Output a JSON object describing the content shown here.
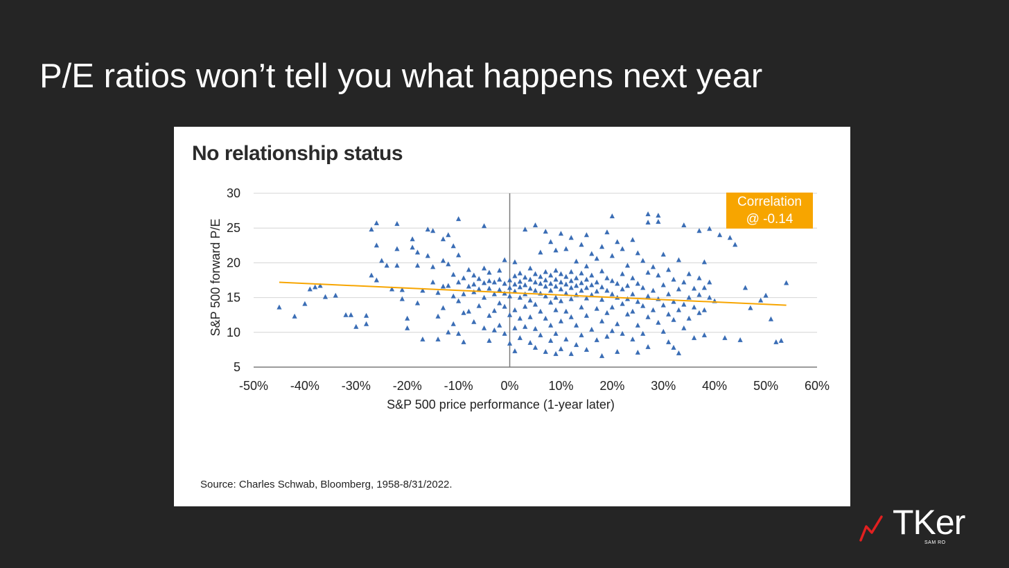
{
  "slide": {
    "title": "P/E ratios won’t tell you what happens next year"
  },
  "chart_card": {
    "source": "Source: Charles Schwab, Bloomberg, 1958-8/31/2022."
  },
  "logo": {
    "wordmark": "TKer",
    "subtitle": "SAM RO"
  },
  "colors": {
    "background": "#252525",
    "point": "#3a6db5",
    "trendline": "#f7a500",
    "annotation_box": "#f7a500",
    "logo_accent": "#e02020"
  },
  "chart_data": {
    "type": "scatter",
    "title": "No relationship status",
    "xlabel": "S&P 500 price performance (1-year later)",
    "ylabel": "S&P 500 forward P/E",
    "xlim": [
      -50,
      60
    ],
    "ylim": [
      5,
      30
    ],
    "xticks": [
      -50,
      -40,
      -30,
      -20,
      -10,
      0,
      10,
      20,
      30,
      40,
      50,
      60
    ],
    "xtick_labels": [
      "-50%",
      "-40%",
      "-30%",
      "-20%",
      "-10%",
      "0%",
      "10%",
      "20%",
      "30%",
      "40%",
      "50%",
      "60%"
    ],
    "yticks": [
      5,
      10,
      15,
      20,
      25,
      30
    ],
    "ytick_labels": [
      "5",
      "10",
      "15",
      "20",
      "25",
      "30"
    ],
    "grid": "horizontal",
    "marker": "triangle",
    "annotation": {
      "lines": [
        "Correlation",
        "@ -0.14"
      ],
      "placement": "top-right"
    },
    "trendline": {
      "x": [
        -45,
        54
      ],
      "y": [
        17.2,
        13.9
      ]
    },
    "points": [
      [
        -45,
        13.6
      ],
      [
        -42,
        12.3
      ],
      [
        -40,
        14.1
      ],
      [
        -39,
        16.2
      ],
      [
        -38,
        16.5
      ],
      [
        -37,
        16.7
      ],
      [
        -36,
        15.1
      ],
      [
        -34,
        15.3
      ],
      [
        -32,
        12.5
      ],
      [
        -31,
        12.5
      ],
      [
        -30,
        10.8
      ],
      [
        -28,
        11.2
      ],
      [
        -28,
        12.4
      ],
      [
        -27,
        24.8
      ],
      [
        -27,
        18.2
      ],
      [
        -26,
        25.7
      ],
      [
        -26,
        22.5
      ],
      [
        -26,
        17.5
      ],
      [
        -25,
        20.3
      ],
      [
        -24,
        19.6
      ],
      [
        -23,
        16.2
      ],
      [
        -22,
        25.6
      ],
      [
        -22,
        22.0
      ],
      [
        -22,
        19.6
      ],
      [
        -21,
        16.1
      ],
      [
        -21,
        14.8
      ],
      [
        -20,
        12.0
      ],
      [
        -20,
        10.6
      ],
      [
        -19,
        23.4
      ],
      [
        -19,
        22.2
      ],
      [
        -18,
        21.5
      ],
      [
        -18,
        19.6
      ],
      [
        -18,
        14.2
      ],
      [
        -17,
        16.0
      ],
      [
        -17,
        9.0
      ],
      [
        -16,
        24.8
      ],
      [
        -16,
        21.0
      ],
      [
        -15,
        24.6
      ],
      [
        -15,
        19.4
      ],
      [
        -15,
        17.2
      ],
      [
        -14,
        15.7
      ],
      [
        -14,
        12.3
      ],
      [
        -14,
        9.0
      ],
      [
        -13,
        23.4
      ],
      [
        -13,
        20.3
      ],
      [
        -13,
        16.6
      ],
      [
        -13,
        13.5
      ],
      [
        -12,
        24.0
      ],
      [
        -12,
        19.8
      ],
      [
        -12,
        16.7
      ],
      [
        -12,
        10.0
      ],
      [
        -11,
        22.4
      ],
      [
        -11,
        18.3
      ],
      [
        -11,
        15.2
      ],
      [
        -11,
        11.2
      ],
      [
        -10,
        26.3
      ],
      [
        -10,
        21.1
      ],
      [
        -10,
        17.2
      ],
      [
        -10,
        14.5
      ],
      [
        -10,
        9.8
      ],
      [
        -9,
        17.8
      ],
      [
        -9,
        15.5
      ],
      [
        -9,
        12.8
      ],
      [
        -9,
        8.6
      ],
      [
        -8,
        19.0
      ],
      [
        -8,
        16.6
      ],
      [
        -8,
        13.0
      ],
      [
        -7,
        18.2
      ],
      [
        -7,
        16.9
      ],
      [
        -7,
        15.8
      ],
      [
        -7,
        11.5
      ],
      [
        -6,
        17.7
      ],
      [
        -6,
        16.2
      ],
      [
        -6,
        13.8
      ],
      [
        -5,
        25.3
      ],
      [
        -5,
        19.2
      ],
      [
        -5,
        17.1
      ],
      [
        -5,
        15.0
      ],
      [
        -5,
        10.6
      ],
      [
        -4,
        18.6
      ],
      [
        -4,
        17.4
      ],
      [
        -4,
        16.3
      ],
      [
        -4,
        12.4
      ],
      [
        -4,
        8.8
      ],
      [
        -3,
        17.2
      ],
      [
        -3,
        15.5
      ],
      [
        -3,
        13.1
      ],
      [
        -3,
        10.3
      ],
      [
        -2,
        18.9
      ],
      [
        -2,
        17.6
      ],
      [
        -2,
        16.1
      ],
      [
        -2,
        14.2
      ],
      [
        -2,
        11.0
      ],
      [
        -1,
        20.4
      ],
      [
        -1,
        17.0
      ],
      [
        -1,
        15.6
      ],
      [
        -1,
        13.7
      ],
      [
        -1,
        9.8
      ],
      [
        0,
        17.5
      ],
      [
        0,
        16.4
      ],
      [
        0,
        15.2
      ],
      [
        0,
        12.5
      ],
      [
        0,
        8.4
      ],
      [
        1,
        20.1
      ],
      [
        1,
        18.1
      ],
      [
        1,
        16.9
      ],
      [
        1,
        15.9
      ],
      [
        1,
        13.2
      ],
      [
        1,
        10.6
      ],
      [
        1,
        7.3
      ],
      [
        2,
        18.5
      ],
      [
        2,
        17.3
      ],
      [
        2,
        16.5
      ],
      [
        2,
        15.0
      ],
      [
        2,
        12.0
      ],
      [
        2,
        9.2
      ],
      [
        3,
        24.8
      ],
      [
        3,
        17.9
      ],
      [
        3,
        16.8
      ],
      [
        3,
        15.5
      ],
      [
        3,
        13.7
      ],
      [
        3,
        10.8
      ],
      [
        4,
        19.2
      ],
      [
        4,
        17.6
      ],
      [
        4,
        16.3
      ],
      [
        4,
        14.6
      ],
      [
        4,
        12.2
      ],
      [
        4,
        8.5
      ],
      [
        5,
        25.4
      ],
      [
        5,
        18.4
      ],
      [
        5,
        17.2
      ],
      [
        5,
        16.0
      ],
      [
        5,
        14.0
      ],
      [
        5,
        10.5
      ],
      [
        5,
        7.8
      ],
      [
        6,
        21.5
      ],
      [
        6,
        18.0
      ],
      [
        6,
        17.0
      ],
      [
        6,
        15.6
      ],
      [
        6,
        13.0
      ],
      [
        6,
        9.6
      ],
      [
        7,
        24.5
      ],
      [
        7,
        18.7
      ],
      [
        7,
        17.5
      ],
      [
        7,
        16.6
      ],
      [
        7,
        15.2
      ],
      [
        7,
        12.0
      ],
      [
        7,
        7.2
      ],
      [
        8,
        23.0
      ],
      [
        8,
        18.2
      ],
      [
        8,
        17.0
      ],
      [
        8,
        16.0
      ],
      [
        8,
        14.3
      ],
      [
        8,
        11.0
      ],
      [
        8,
        8.8
      ],
      [
        9,
        21.8
      ],
      [
        9,
        18.9
      ],
      [
        9,
        17.6
      ],
      [
        9,
        16.6
      ],
      [
        9,
        15.0
      ],
      [
        9,
        13.2
      ],
      [
        9,
        9.8
      ],
      [
        9,
        6.9
      ],
      [
        10,
        24.2
      ],
      [
        10,
        18.4
      ],
      [
        10,
        17.2
      ],
      [
        10,
        16.2
      ],
      [
        10,
        14.5
      ],
      [
        10,
        11.6
      ],
      [
        10,
        7.6
      ],
      [
        11,
        22.0
      ],
      [
        11,
        18.0
      ],
      [
        11,
        16.9
      ],
      [
        11,
        15.6
      ],
      [
        11,
        13.0
      ],
      [
        11,
        9.0
      ],
      [
        12,
        23.6
      ],
      [
        12,
        18.7
      ],
      [
        12,
        17.4
      ],
      [
        12,
        16.4
      ],
      [
        12,
        14.8
      ],
      [
        12,
        12.2
      ],
      [
        12,
        6.9
      ],
      [
        13,
        20.2
      ],
      [
        13,
        17.8
      ],
      [
        13,
        16.7
      ],
      [
        13,
        15.4
      ],
      [
        13,
        11.0
      ],
      [
        13,
        8.2
      ],
      [
        14,
        22.6
      ],
      [
        14,
        18.5
      ],
      [
        14,
        17.1
      ],
      [
        14,
        16.0
      ],
      [
        14,
        13.6
      ],
      [
        14,
        9.6
      ],
      [
        15,
        24.0
      ],
      [
        15,
        19.5
      ],
      [
        15,
        17.6
      ],
      [
        15,
        16.4
      ],
      [
        15,
        14.9
      ],
      [
        15,
        12.4
      ],
      [
        15,
        7.5
      ],
      [
        16,
        21.3
      ],
      [
        16,
        18.2
      ],
      [
        16,
        16.8
      ],
      [
        16,
        15.4
      ],
      [
        16,
        10.4
      ],
      [
        17,
        20.6
      ],
      [
        17,
        17.2
      ],
      [
        17,
        15.9
      ],
      [
        17,
        13.4
      ],
      [
        17,
        8.9
      ],
      [
        18,
        22.3
      ],
      [
        18,
        18.8
      ],
      [
        18,
        16.5
      ],
      [
        18,
        14.7
      ],
      [
        18,
        11.6
      ],
      [
        18,
        6.6
      ],
      [
        19,
        24.4
      ],
      [
        19,
        17.8
      ],
      [
        19,
        16.0
      ],
      [
        19,
        12.8
      ],
      [
        19,
        9.4
      ],
      [
        20,
        26.7
      ],
      [
        20,
        21.0
      ],
      [
        20,
        17.4
      ],
      [
        20,
        15.5
      ],
      [
        20,
        13.6
      ],
      [
        20,
        10.2
      ],
      [
        21,
        23.0
      ],
      [
        21,
        17.0
      ],
      [
        21,
        15.0
      ],
      [
        21,
        11.2
      ],
      [
        21,
        7.2
      ],
      [
        22,
        22.0
      ],
      [
        22,
        18.4
      ],
      [
        22,
        16.2
      ],
      [
        22,
        14.1
      ],
      [
        22,
        9.8
      ],
      [
        23,
        19.6
      ],
      [
        23,
        16.7
      ],
      [
        23,
        14.8
      ],
      [
        23,
        12.6
      ],
      [
        24,
        23.3
      ],
      [
        24,
        17.8
      ],
      [
        24,
        15.5
      ],
      [
        24,
        13.0
      ],
      [
        24,
        9.0
      ],
      [
        25,
        21.4
      ],
      [
        25,
        17.0
      ],
      [
        25,
        14.4
      ],
      [
        25,
        11.0
      ],
      [
        25,
        7.1
      ],
      [
        26,
        20.3
      ],
      [
        26,
        16.4
      ],
      [
        26,
        13.8
      ],
      [
        26,
        9.8
      ],
      [
        27,
        27.0
      ],
      [
        27,
        25.8
      ],
      [
        27,
        18.6
      ],
      [
        27,
        15.2
      ],
      [
        27,
        12.2
      ],
      [
        27,
        7.9
      ],
      [
        28,
        19.4
      ],
      [
        28,
        16.0
      ],
      [
        28,
        13.2
      ],
      [
        29,
        26.8
      ],
      [
        29,
        25.9
      ],
      [
        29,
        18.2
      ],
      [
        29,
        14.8
      ],
      [
        29,
        11.4
      ],
      [
        30,
        21.2
      ],
      [
        30,
        16.8
      ],
      [
        30,
        13.9
      ],
      [
        30,
        10.1
      ],
      [
        31,
        19.0
      ],
      [
        31,
        15.5
      ],
      [
        31,
        12.6
      ],
      [
        31,
        8.6
      ],
      [
        32,
        17.6
      ],
      [
        32,
        14.4
      ],
      [
        32,
        11.8
      ],
      [
        32,
        7.8
      ],
      [
        33,
        20.4
      ],
      [
        33,
        16.2
      ],
      [
        33,
        13.2
      ],
      [
        33,
        7.0
      ],
      [
        34,
        25.4
      ],
      [
        34,
        17.2
      ],
      [
        34,
        14.0
      ],
      [
        34,
        10.6
      ],
      [
        35,
        18.4
      ],
      [
        35,
        15.0
      ],
      [
        35,
        12.0
      ],
      [
        36,
        16.3
      ],
      [
        36,
        13.6
      ],
      [
        36,
        9.2
      ],
      [
        37,
        24.6
      ],
      [
        37,
        17.8
      ],
      [
        37,
        15.4
      ],
      [
        37,
        12.8
      ],
      [
        38,
        20.1
      ],
      [
        38,
        16.4
      ],
      [
        38,
        13.2
      ],
      [
        38,
        9.6
      ],
      [
        39,
        24.9
      ],
      [
        39,
        17.2
      ],
      [
        39,
        15.0
      ],
      [
        40,
        14.5
      ],
      [
        41,
        24.0
      ],
      [
        42,
        9.2
      ],
      [
        43,
        23.6
      ],
      [
        44,
        22.6
      ],
      [
        45,
        8.9
      ],
      [
        46,
        16.4
      ],
      [
        47,
        13.5
      ],
      [
        49,
        14.6
      ],
      [
        50,
        15.3
      ],
      [
        51,
        11.9
      ],
      [
        52,
        8.6
      ],
      [
        53,
        8.8
      ],
      [
        54,
        17.1
      ]
    ]
  }
}
